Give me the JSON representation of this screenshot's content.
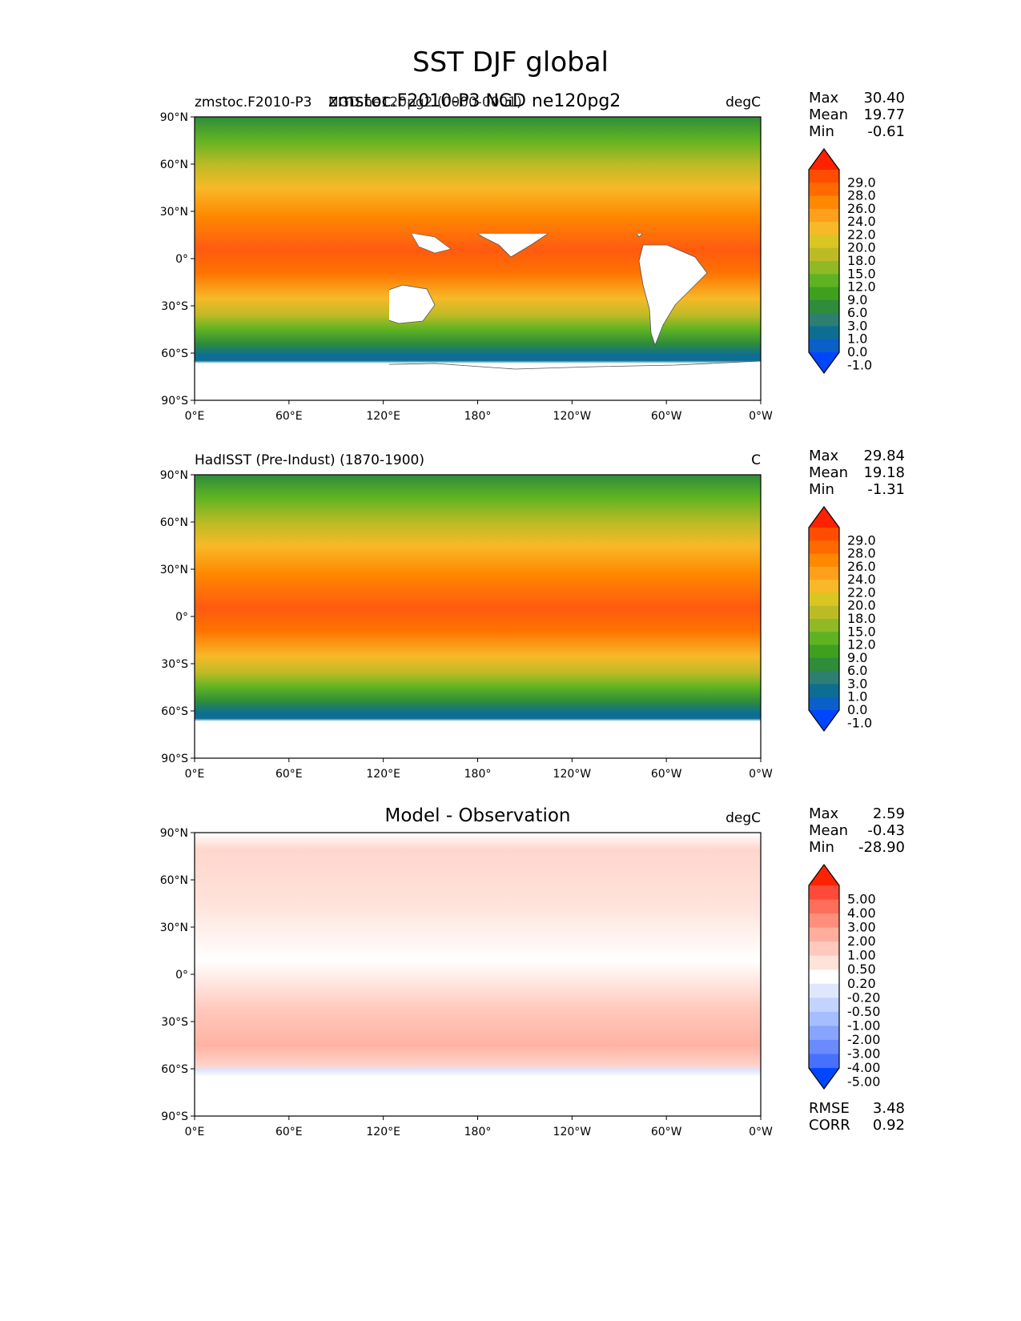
{
  "suptitle": "SST DJF global",
  "lon_ticks": [
    "0°E",
    "60°E",
    "120°E",
    "180°",
    "120°W",
    "60°W",
    "0°W"
  ],
  "lat_ticks": [
    "90°N",
    "60°N",
    "30°N",
    "0°",
    "30°S",
    "60°S",
    "90°S"
  ],
  "panels": [
    {
      "left_title": "zmstoc.F2010-P3",
      "center_title": "zmstoc.F2010-P3 NGD ne120pg2",
      "overlap_title": "NGD.ne120pg2 (0000-0001)",
      "right_title": "degC",
      "stats": [
        {
          "label": "Max",
          "value": "30.40"
        },
        {
          "label": "Mean",
          "value": "19.77"
        },
        {
          "label": "Min",
          "value": "-0.61"
        }
      ],
      "colorbar": {
        "labels": [
          "29.0",
          "28.0",
          "26.0",
          "24.0",
          "22.0",
          "20.0",
          "18.0",
          "15.0",
          "12.0",
          "9.0",
          "6.0",
          "3.0",
          "1.0",
          "0.0",
          "-1.0"
        ],
        "colors": [
          "#ff2200",
          "#ff4d00",
          "#ff6a00",
          "#ff8800",
          "#ffa01c",
          "#f7b928",
          "#d9c623",
          "#bdbb25",
          "#8fba25",
          "#5fb322",
          "#3f9f1e",
          "#2e8c3a",
          "#2d7f72",
          "#0d6e94",
          "#0a5fc9",
          "#0046ff"
        ]
      }
    },
    {
      "left_title": "HadISST (Pre-Indust) (1870-1900)",
      "center_title": "",
      "right_title": "C",
      "stats": [
        {
          "label": "Max",
          "value": "29.84"
        },
        {
          "label": "Mean",
          "value": "19.18"
        },
        {
          "label": "Min",
          "value": "-1.31"
        }
      ],
      "colorbar": {
        "labels": [
          "29.0",
          "28.0",
          "26.0",
          "24.0",
          "22.0",
          "20.0",
          "18.0",
          "15.0",
          "12.0",
          "9.0",
          "6.0",
          "3.0",
          "1.0",
          "0.0",
          "-1.0"
        ],
        "colors": [
          "#ff2200",
          "#ff4d00",
          "#ff6a00",
          "#ff8800",
          "#ffa01c",
          "#f7b928",
          "#d9c623",
          "#bdbb25",
          "#8fba25",
          "#5fb322",
          "#3f9f1e",
          "#2e8c3a",
          "#2d7f72",
          "#0d6e94",
          "#0a5fc9",
          "#0046ff"
        ]
      }
    },
    {
      "left_title": "",
      "center_title": "Model - Observation",
      "right_title": "degC",
      "stats": [
        {
          "label": "Max",
          "value": "2.59"
        },
        {
          "label": "Mean",
          "value": "-0.43"
        },
        {
          "label": "Min",
          "value": "-28.90"
        }
      ],
      "colorbar": {
        "labels": [
          "5.00",
          "4.00",
          "3.00",
          "2.00",
          "1.00",
          "0.50",
          "0.20",
          "-0.20",
          "-0.50",
          "-1.00",
          "-2.00",
          "-3.00",
          "-4.00",
          "-5.00"
        ],
        "colors": [
          "#ff2200",
          "#ff4a3a",
          "#ff6e5a",
          "#ff8f7c",
          "#ffae9e",
          "#ffc9bd",
          "#ffe2da",
          "#ffffff",
          "#dfe7ff",
          "#c3d3ff",
          "#a6bdff",
          "#87a4ff",
          "#6a8bff",
          "#4870ff",
          "#0046ff"
        ]
      },
      "bottom_stats": [
        {
          "label": "RMSE",
          "value": "3.48"
        },
        {
          "label": "CORR",
          "value": "0.92"
        }
      ]
    }
  ]
}
